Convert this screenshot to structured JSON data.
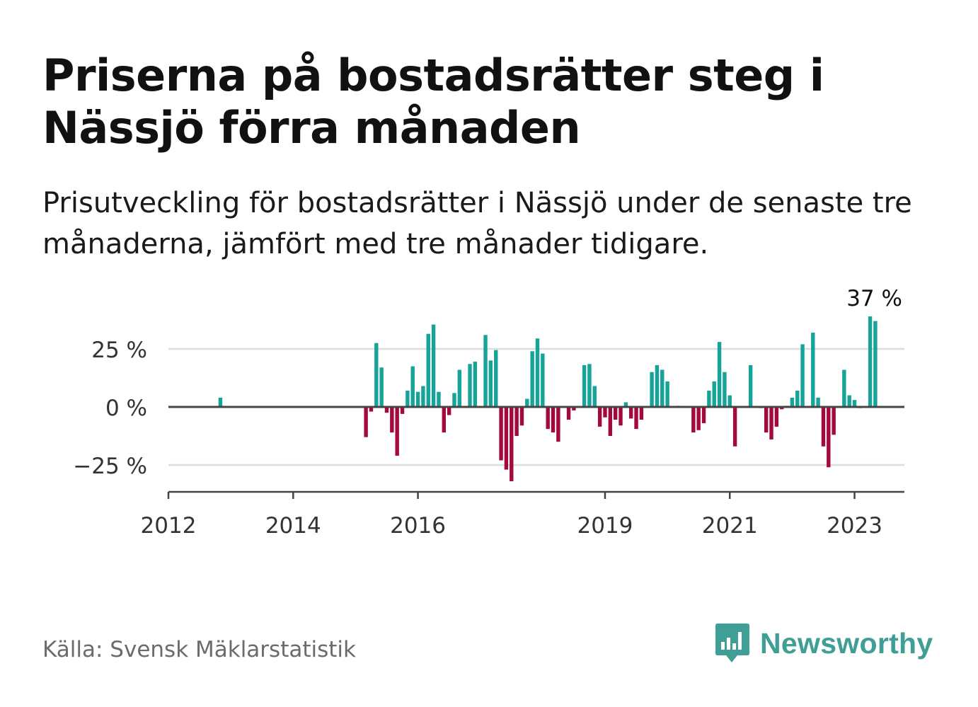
{
  "title": "Priserna på bostadsrätter steg i Nässjö förra månaden",
  "subtitle": "Prisutveckling för bostadsrätter i Nässjö under de senaste tre månaderna, jämfört med tre månader tidigare.",
  "source": "Källa: Svensk Mäklarstatistik",
  "brand": {
    "name": "Newsworthy",
    "icon": "newsworthy-logo-icon"
  },
  "colors": {
    "positive": "#15a39a",
    "negative": "#a3083f",
    "grid": "#dddddd",
    "axis": "#444444",
    "brand": "#3f9e95"
  },
  "chart_data": {
    "type": "bar",
    "title": "",
    "xlabel": "",
    "ylabel": "",
    "ylim": [
      -36,
      42
    ],
    "xlim": [
      "2012-01",
      "2023-12"
    ],
    "y_ticks": [
      {
        "value": 25,
        "label": "25 %"
      },
      {
        "value": 0,
        "label": "0 %"
      },
      {
        "value": -25,
        "label": "−25 %"
      }
    ],
    "x_ticks": [
      {
        "date": "2012-01",
        "label": "2012"
      },
      {
        "date": "2014-01",
        "label": "2014"
      },
      {
        "date": "2016-01",
        "label": "2016"
      },
      {
        "date": "2019-01",
        "label": "2019"
      },
      {
        "date": "2021-01",
        "label": "2021"
      },
      {
        "date": "2023-01",
        "label": "2023"
      }
    ],
    "grid": true,
    "annotation": {
      "date": "2023-04",
      "text": "37 %"
    },
    "series": [
      {
        "values": [
          {
            "date": "2012-11",
            "value": 4
          },
          {
            "date": "2015-03",
            "value": -13
          },
          {
            "date": "2015-04",
            "value": -2
          },
          {
            "date": "2015-05",
            "value": 27.5
          },
          {
            "date": "2015-06",
            "value": 17
          },
          {
            "date": "2015-07",
            "value": -2.5
          },
          {
            "date": "2015-08",
            "value": -11
          },
          {
            "date": "2015-09",
            "value": -21
          },
          {
            "date": "2015-10",
            "value": -3
          },
          {
            "date": "2015-11",
            "value": 7
          },
          {
            "date": "2015-12",
            "value": 17.5
          },
          {
            "date": "2016-01",
            "value": 6.5
          },
          {
            "date": "2016-02",
            "value": 9
          },
          {
            "date": "2016-03",
            "value": 31.5
          },
          {
            "date": "2016-04",
            "value": 35.5
          },
          {
            "date": "2016-05",
            "value": 6.5
          },
          {
            "date": "2016-06",
            "value": -11
          },
          {
            "date": "2016-07",
            "value": -3.5
          },
          {
            "date": "2016-08",
            "value": 6
          },
          {
            "date": "2016-09",
            "value": 16
          },
          {
            "date": "2016-10",
            "value": 0
          },
          {
            "date": "2016-11",
            "value": 18.5
          },
          {
            "date": "2016-12",
            "value": 19.5
          },
          {
            "date": "2017-01",
            "value": 0
          },
          {
            "date": "2017-02",
            "value": 31
          },
          {
            "date": "2017-03",
            "value": 20
          },
          {
            "date": "2017-04",
            "value": 24.5
          },
          {
            "date": "2017-05",
            "value": -23
          },
          {
            "date": "2017-06",
            "value": -27
          },
          {
            "date": "2017-07",
            "value": -32
          },
          {
            "date": "2017-08",
            "value": -12.5
          },
          {
            "date": "2017-09",
            "value": -8
          },
          {
            "date": "2017-10",
            "value": 3.5
          },
          {
            "date": "2017-11",
            "value": 24
          },
          {
            "date": "2017-12",
            "value": 29.5
          },
          {
            "date": "2018-01",
            "value": 23
          },
          {
            "date": "2018-02",
            "value": -9.5
          },
          {
            "date": "2018-03",
            "value": -11
          },
          {
            "date": "2018-04",
            "value": -15
          },
          {
            "date": "2018-05",
            "value": 0
          },
          {
            "date": "2018-06",
            "value": -5.5
          },
          {
            "date": "2018-07",
            "value": -1.5
          },
          {
            "date": "2018-08",
            "value": 0
          },
          {
            "date": "2018-09",
            "value": 18
          },
          {
            "date": "2018-10",
            "value": 18.5
          },
          {
            "date": "2018-11",
            "value": 9
          },
          {
            "date": "2018-12",
            "value": -8.5
          },
          {
            "date": "2019-01",
            "value": -4.5
          },
          {
            "date": "2019-02",
            "value": -12.5
          },
          {
            "date": "2019-03",
            "value": -5.5
          },
          {
            "date": "2019-04",
            "value": -8
          },
          {
            "date": "2019-05",
            "value": 2
          },
          {
            "date": "2019-06",
            "value": -5
          },
          {
            "date": "2019-07",
            "value": -9.5
          },
          {
            "date": "2019-08",
            "value": -5.5
          },
          {
            "date": "2019-09",
            "value": 0
          },
          {
            "date": "2019-10",
            "value": 15
          },
          {
            "date": "2019-11",
            "value": 18
          },
          {
            "date": "2019-12",
            "value": 16
          },
          {
            "date": "2020-01",
            "value": 11
          },
          {
            "date": "2020-03",
            "value": 0.5
          },
          {
            "date": "2020-06",
            "value": -11
          },
          {
            "date": "2020-07",
            "value": -10
          },
          {
            "date": "2020-08",
            "value": -7
          },
          {
            "date": "2020-09",
            "value": 7
          },
          {
            "date": "2020-10",
            "value": 11
          },
          {
            "date": "2020-11",
            "value": 28
          },
          {
            "date": "2020-12",
            "value": 15
          },
          {
            "date": "2021-01",
            "value": 5
          },
          {
            "date": "2021-02",
            "value": -17
          },
          {
            "date": "2021-05",
            "value": 18
          },
          {
            "date": "2021-07",
            "value": -0.5
          },
          {
            "date": "2021-08",
            "value": -11
          },
          {
            "date": "2021-09",
            "value": -14
          },
          {
            "date": "2021-10",
            "value": -8.5
          },
          {
            "date": "2021-11",
            "value": -1
          },
          {
            "date": "2021-12",
            "value": 0.5
          },
          {
            "date": "2022-01",
            "value": 4
          },
          {
            "date": "2022-02",
            "value": 7
          },
          {
            "date": "2022-03",
            "value": 27
          },
          {
            "date": "2022-04",
            "value": 0
          },
          {
            "date": "2022-05",
            "value": 32
          },
          {
            "date": "2022-06",
            "value": 4
          },
          {
            "date": "2022-07",
            "value": -17
          },
          {
            "date": "2022-08",
            "value": -26
          },
          {
            "date": "2022-09",
            "value": -12
          },
          {
            "date": "2022-11",
            "value": 16
          },
          {
            "date": "2022-12",
            "value": 5
          },
          {
            "date": "2023-01",
            "value": 3
          },
          {
            "date": "2023-02",
            "value": -0.5
          },
          {
            "date": "2023-04",
            "value": 39
          },
          {
            "date": "2023-05",
            "value": 37
          }
        ]
      }
    ]
  }
}
